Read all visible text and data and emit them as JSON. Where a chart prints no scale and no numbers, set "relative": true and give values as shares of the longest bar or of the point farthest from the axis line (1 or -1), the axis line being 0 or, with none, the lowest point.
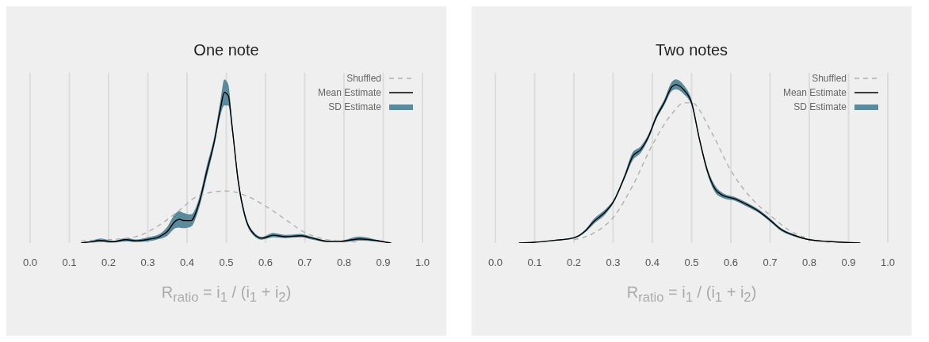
{
  "chart_data": [
    {
      "type": "line",
      "title": "One note",
      "xlabel": "R$_{ratio}$ = i$_{1}$ / (i$_{1}$ + i$_{2}$)",
      "relative": true,
      "grid": "x",
      "legend": "top right",
      "xlim": [
        0,
        1
      ],
      "xticks": [
        {
          "value": 0,
          "label": "0.0"
        },
        {
          "value": 0.1,
          "label": "0.1"
        },
        {
          "value": 0.2,
          "label": "0.2"
        },
        {
          "value": 0.3,
          "label": "0.3"
        },
        {
          "value": 0.4,
          "label": "0.4"
        },
        {
          "value": 0.5,
          "label": "0.5"
        },
        {
          "value": 0.6,
          "label": "0.6"
        },
        {
          "value": 0.7,
          "label": "0.7"
        },
        {
          "value": 0.8,
          "label": "0.8"
        },
        {
          "value": 0.9,
          "label": "0.9"
        },
        {
          "value": 1,
          "label": "1.0"
        }
      ],
      "series": [
        {
          "name": "Shuffled",
          "line_style": "dashed",
          "color": "#b0b0b0",
          "x": [
            0.13,
            0.2,
            0.27,
            0.33,
            0.38,
            0.43,
            0.5,
            0.55,
            0.6,
            0.65,
            0.7,
            0.75,
            0.8,
            0.84
          ],
          "values": [
            0.014,
            0.022,
            0.043,
            0.12,
            0.217,
            0.315,
            0.346,
            0.315,
            0.245,
            0.158,
            0.07,
            0.026,
            0.011,
            0.007
          ]
        },
        {
          "name": "Mean Estimate",
          "line_style": "solid",
          "color": "#000000",
          "x": [
            0.13,
            0.15,
            0.18,
            0.21,
            0.245,
            0.27,
            0.3,
            0.33,
            0.35,
            0.37,
            0.38,
            0.39,
            0.41,
            0.43,
            0.45,
            0.47,
            0.485,
            0.495,
            0.505,
            0.515,
            0.53,
            0.55,
            0.57,
            0.59,
            0.62,
            0.65,
            0.69,
            0.72,
            0.76,
            0.79,
            0.84,
            0.88,
            0.92
          ],
          "values": [
            0,
            0.007,
            0.017,
            0.009,
            0.022,
            0.015,
            0.024,
            0.043,
            0.078,
            0.145,
            0.158,
            0.15,
            0.149,
            0.261,
            0.472,
            0.682,
            0.891,
            1,
            0.978,
            0.768,
            0.42,
            0.158,
            0.061,
            0.032,
            0.052,
            0.042,
            0.049,
            0.032,
            0.011,
            0.011,
            0.028,
            0.017,
            0
          ],
          "lower": [
            0,
            0.002,
            0.007,
            0.003,
            0.011,
            0.007,
            0.011,
            0.027,
            0.049,
            0.098,
            0.103,
            0.098,
            0.109,
            0.228,
            0.435,
            0.652,
            0.848,
            0.913,
            0.913,
            0.739,
            0.391,
            0.141,
            0.049,
            0.022,
            0.038,
            0.033,
            0.038,
            0.022,
            0.005,
            0.005,
            0.016,
            0.011,
            0
          ],
          "upper": [
            0.003,
            0.011,
            0.03,
            0.014,
            0.033,
            0.024,
            0.038,
            0.06,
            0.109,
            0.196,
            0.212,
            0.201,
            0.19,
            0.293,
            0.511,
            0.717,
            0.946,
            1.087,
            1.054,
            0.804,
            0.446,
            0.174,
            0.073,
            0.041,
            0.067,
            0.054,
            0.061,
            0.041,
            0.016,
            0.016,
            0.043,
            0.024,
            0.003
          ]
        },
        {
          "name": "SD Estimate",
          "type": "area",
          "color": "#5a8a9b"
        }
      ]
    },
    {
      "type": "line",
      "title": "Two notes",
      "xlabel": "R$_{ratio}$ = i$_{1}$ / (i$_{1}$ + i$_{2}$)",
      "relative": true,
      "grid": "x",
      "legend": "top right",
      "xlim": [
        0,
        1
      ],
      "xticks": [
        {
          "value": 0,
          "label": "0.0"
        },
        {
          "value": 0.1,
          "label": "0.1"
        },
        {
          "value": 0.2,
          "label": "0.2"
        },
        {
          "value": 0.3,
          "label": "0.3"
        },
        {
          "value": 0.4,
          "label": "0.4"
        },
        {
          "value": 0.5,
          "label": "0.5"
        },
        {
          "value": 0.6,
          "label": "0.6"
        },
        {
          "value": 0.7,
          "label": "0.7"
        },
        {
          "value": 0.8,
          "label": "0.8"
        },
        {
          "value": 0.9,
          "label": "0.9"
        },
        {
          "value": 1,
          "label": "1.0"
        }
      ],
      "series": [
        {
          "name": "Shuffled",
          "line_style": "dashed",
          "color": "#b0b0b0",
          "x": [
            0.2,
            0.25,
            0.3,
            0.35,
            0.4,
            0.45,
            0.48,
            0.5,
            0.55,
            0.6,
            0.65,
            0.7,
            0.75,
            0.8,
            0.85
          ],
          "values": [
            0.021,
            0.062,
            0.161,
            0.362,
            0.62,
            0.816,
            0.885,
            0.885,
            0.702,
            0.458,
            0.289,
            0.176,
            0.079,
            0.026,
            0.005
          ]
        },
        {
          "name": "Mean Estimate",
          "line_style": "solid",
          "color": "#000000",
          "x": [
            0.06,
            0.1,
            0.15,
            0.2,
            0.23,
            0.25,
            0.28,
            0.3,
            0.33,
            0.35,
            0.37,
            0.39,
            0.41,
            0.43,
            0.45,
            0.46,
            0.48,
            0.5,
            0.52,
            0.54,
            0.56,
            0.58,
            0.61,
            0.64,
            0.67,
            0.7,
            0.73,
            0.76,
            0.8,
            0.85,
            0.93
          ],
          "values": [
            0,
            0.005,
            0.017,
            0.033,
            0.079,
            0.134,
            0.196,
            0.258,
            0.424,
            0.548,
            0.589,
            0.671,
            0.795,
            0.885,
            0.987,
            1,
            0.967,
            0.885,
            0.655,
            0.458,
            0.341,
            0.3,
            0.279,
            0.244,
            0.202,
            0.145,
            0.083,
            0.05,
            0.021,
            0.01,
            0
          ],
          "lower": [
            0,
            0.004,
            0.014,
            0.029,
            0.07,
            0.119,
            0.181,
            0.248,
            0.408,
            0.522,
            0.568,
            0.656,
            0.78,
            0.868,
            0.961,
            0.971,
            0.94,
            0.868,
            0.64,
            0.439,
            0.32,
            0.284,
            0.267,
            0.231,
            0.192,
            0.134,
            0.074,
            0.043,
            0.018,
            0.008,
            0
          ],
          "upper": [
            0.002,
            0.006,
            0.019,
            0.037,
            0.087,
            0.15,
            0.212,
            0.269,
            0.439,
            0.573,
            0.61,
            0.687,
            0.811,
            0.904,
            1.018,
            1.033,
            0.997,
            0.904,
            0.671,
            0.475,
            0.362,
            0.315,
            0.291,
            0.256,
            0.213,
            0.155,
            0.091,
            0.056,
            0.024,
            0.012,
            0.002
          ]
        },
        {
          "name": "SD Estimate",
          "type": "area",
          "color": "#5a8a9b"
        }
      ]
    }
  ]
}
